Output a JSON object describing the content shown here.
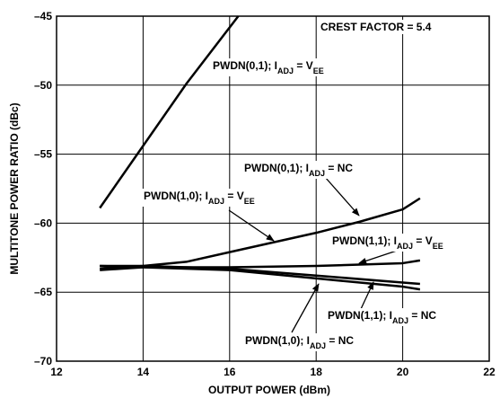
{
  "chart_data": {
    "type": "line",
    "xlabel": "OUTPUT POWER (dBm)",
    "ylabel": "MULTITONE POWER RATIO (dBc)",
    "xlim": [
      12,
      22
    ],
    "xticks": [
      12,
      14,
      16,
      18,
      20,
      22
    ],
    "ylim": [
      -70,
      -45
    ],
    "yticks": [
      {
        "value": -70,
        "label": "–70"
      },
      {
        "value": -65,
        "label": "–65"
      },
      {
        "value": -60,
        "label": "–60"
      },
      {
        "value": -55,
        "label": "–55"
      },
      {
        "value": -50,
        "label": "–50"
      },
      {
        "value": -45,
        "label": "–45"
      }
    ],
    "grid": true,
    "series": [
      {
        "color": "#000000",
        "x": [
          13,
          14,
          15,
          16.2
        ],
        "values": [
          -58.9,
          -54.4,
          -49.9,
          -45
        ]
      },
      {
        "color": "#000000",
        "x": [
          13,
          14,
          15,
          16,
          17,
          18,
          19,
          20,
          20.4
        ],
        "values": [
          -63.3,
          -63.1,
          -62.8,
          -62.1,
          -61.4,
          -60.7,
          -59.9,
          -59.0,
          -58.2
        ]
      },
      {
        "color": "#000000",
        "x": [
          13,
          14,
          16,
          18,
          20,
          20.4
        ],
        "values": [
          -63.4,
          -63.2,
          -63.2,
          -63.1,
          -62.9,
          -62.7
        ]
      },
      {
        "color": "#000000",
        "x": [
          13,
          14,
          16,
          18,
          20,
          20.4
        ],
        "values": [
          -63.1,
          -63.1,
          -63.3,
          -63.8,
          -64.3,
          -64.4
        ]
      },
      {
        "color": "#000000",
        "x": [
          13,
          14,
          16,
          18,
          20,
          20.4
        ],
        "values": [
          -63.1,
          -63.2,
          -63.4,
          -64.0,
          -64.6,
          -64.8
        ]
      }
    ],
    "annotations": [
      {
        "parts": [
          "CREST FACTOR = 5.4"
        ]
      },
      {
        "parts": [
          "PWDN(0,1); I",
          "ADJ",
          " = V",
          "EE"
        ]
      },
      {
        "parts": [
          "PWDN(0,1); I",
          "ADJ",
          " = NC"
        ]
      },
      {
        "parts": [
          "PWDN(1,0); I",
          "ADJ",
          " = V",
          "EE"
        ]
      },
      {
        "parts": [
          "PWDN(1,1); I",
          "ADJ",
          " = V",
          "EE"
        ]
      },
      {
        "parts": [
          "PWDN(1,1); I",
          "ADJ",
          " = NC"
        ]
      },
      {
        "parts": [
          "PWDN(1,0); I",
          "ADJ",
          " = NC"
        ]
      }
    ]
  }
}
